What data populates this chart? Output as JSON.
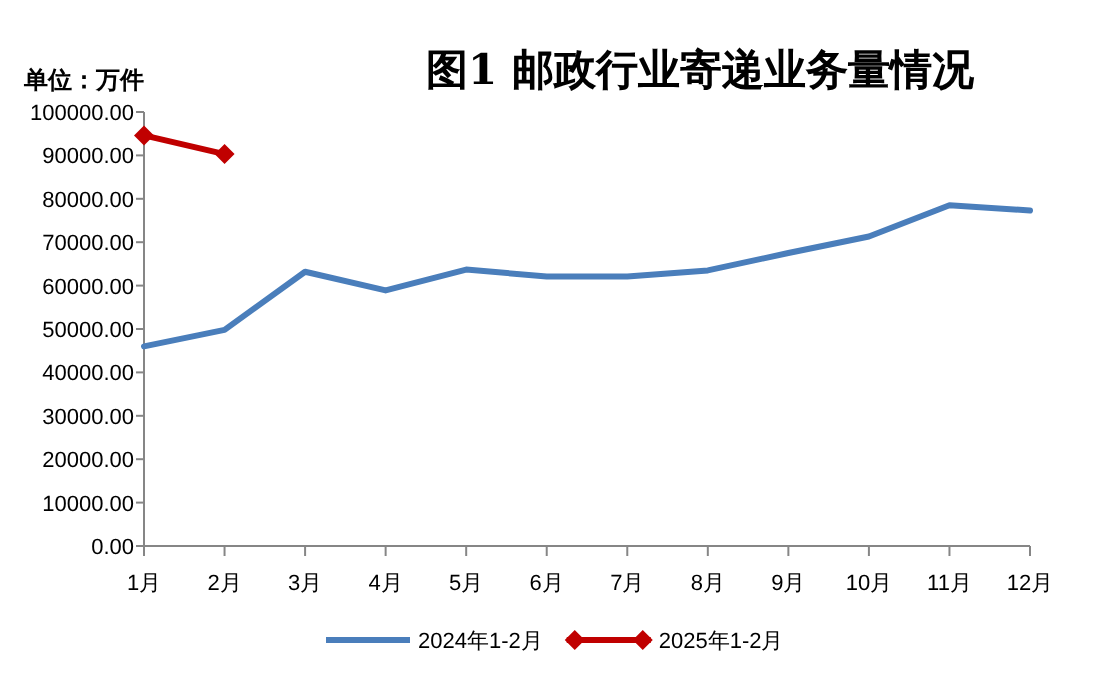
{
  "chart_data": {
    "type": "line",
    "title": "图1  邮政行业寄递业务量情况",
    "ylabel": "单位：万件",
    "categories": [
      "1月",
      "2月",
      "3月",
      "4月",
      "5月",
      "6月",
      "7月",
      "8月",
      "9月",
      "10月",
      "11月",
      "12月"
    ],
    "series": [
      {
        "name": "2024年1-2月",
        "color": "#4a7ebb",
        "marker": "none",
        "values": [
          46000,
          49800,
          63200,
          58900,
          63700,
          62100,
          62100,
          63500,
          67500,
          71300,
          78500,
          77300
        ]
      },
      {
        "name": "2025年1-2月",
        "color": "#c00000",
        "marker": "diamond",
        "values": [
          94600,
          90300,
          null,
          null,
          null,
          null,
          null,
          null,
          null,
          null,
          null,
          null
        ]
      }
    ],
    "ylim": [
      0,
      100000
    ],
    "yticks": [
      {
        "value": 0,
        "label": "0.00"
      },
      {
        "value": 10000,
        "label": "10000.00"
      },
      {
        "value": 20000,
        "label": "20000.00"
      },
      {
        "value": 30000,
        "label": "30000.00"
      },
      {
        "value": 40000,
        "label": "40000.00"
      },
      {
        "value": 50000,
        "label": "50000.00"
      },
      {
        "value": 60000,
        "label": "60000.00"
      },
      {
        "value": 70000,
        "label": "70000.00"
      },
      {
        "value": 80000,
        "label": "80000.00"
      },
      {
        "value": 90000,
        "label": "90000.00"
      },
      {
        "value": 100000,
        "label": "100000.00"
      }
    ],
    "grid": false,
    "legend": "bottom",
    "line_style": "solid"
  }
}
